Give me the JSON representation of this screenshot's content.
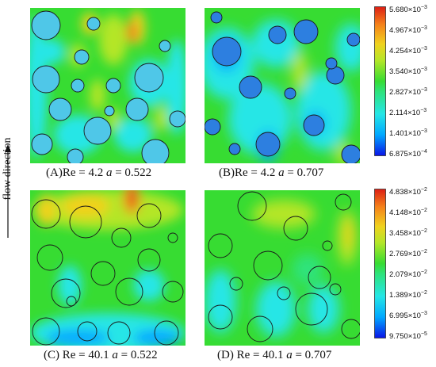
{
  "flow_label": "flow direction",
  "panels": [
    {
      "id": "A",
      "caption_prefix": "(A)Re = 4.2 ",
      "param_symbol": "a",
      "caption_suffix": " = 0.522"
    },
    {
      "id": "B",
      "caption_prefix": "(B)Re = 4.2 ",
      "param_symbol": "a",
      "caption_suffix": " = 0.707"
    },
    {
      "id": "C",
      "caption_prefix": "(C) Re = 40.1 ",
      "param_symbol": "a",
      "caption_suffix": " = 0.522"
    },
    {
      "id": "D",
      "caption_prefix": "(D) Re = 40.1 ",
      "param_symbol": "a",
      "caption_suffix": " = 0.707"
    }
  ],
  "colorbar_top": {
    "ticks": [
      {
        "mant": "5.680",
        "exp": "-3"
      },
      {
        "mant": "4.967",
        "exp": "-3"
      },
      {
        "mant": "4.254",
        "exp": "-3"
      },
      {
        "mant": "3.540",
        "exp": "-3"
      },
      {
        "mant": "2.827",
        "exp": "-3"
      },
      {
        "mant": "2.114",
        "exp": "-3"
      },
      {
        "mant": "1.401",
        "exp": "-3"
      },
      {
        "mant": "6.875",
        "exp": "-4"
      }
    ]
  },
  "colorbar_bottom": {
    "ticks": [
      {
        "mant": "4.838",
        "exp": "-2"
      },
      {
        "mant": "4.148",
        "exp": "-2"
      },
      {
        "mant": "3.458",
        "exp": "-2"
      },
      {
        "mant": "2.769",
        "exp": "-2"
      },
      {
        "mant": "2.079",
        "exp": "-2"
      },
      {
        "mant": "1.389",
        "exp": "-2"
      },
      {
        "mant": "6.995",
        "exp": "-3"
      },
      {
        "mant": "9.750",
        "exp": "-5"
      }
    ]
  },
  "colormap": [
    "#0a14e6",
    "#00a8ff",
    "#25e6e6",
    "#2ee37c",
    "#37dc32",
    "#b4e628",
    "#f0d21e",
    "#f5821a",
    "#dc1e14"
  ]
}
